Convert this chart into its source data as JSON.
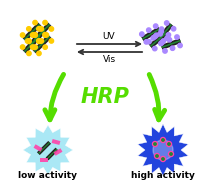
{
  "bg_color": "#ffffff",
  "arrow_color": "#55dd00",
  "uv_vis_arrow_color": "#333333",
  "hrp_color": "#55dd00",
  "hrp_text": "HRP",
  "uv_text": "UV",
  "vis_text": "Vis",
  "low_activity_text": "low activity",
  "high_activity_text": "high activity",
  "low_burst_color": "#aae8f5",
  "high_burst_color": "#2244dd",
  "high_burst_inner": "#4466ff",
  "nanotube_color": "#222222",
  "nanotube_green": "#228833",
  "yellow_group_color": "#ffcc00",
  "purple_group_color": "#aa88ff",
  "pink_color": "#ff44aa",
  "white": "#ffffff"
}
